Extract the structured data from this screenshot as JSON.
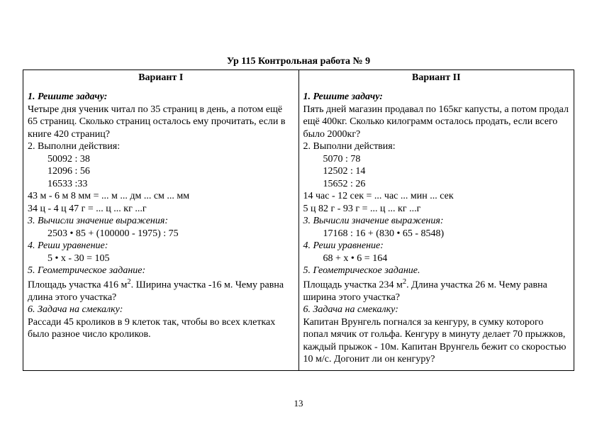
{
  "header": "Ур 115  Контрольная работа № 9",
  "page_number": "13",
  "variants": [
    {
      "title": "Вариант I",
      "t1_head": "1. Решите задачу:",
      "t1_body": "Четыре дня ученик читал по 35 страниц в день, а потом ещё 65 страниц. Сколько страниц осталось ему прочитать, если в книге 420 страниц?",
      "t2_head": "2. Выполни действия:",
      "t2_l1": "50092 : 38",
      "t2_l2": "12096 : 56",
      "t2_l3": "16533 :33",
      "t2_l4": " 43 м - 6 м 8 мм = ... м ... дм ... см ... мм",
      "t2_l5": " 34 ц - 4 ц 47 г = ... ц ... кг ...г",
      "t3_head": "3. Вычисли значение выражения:",
      "t3_l1": "2503 • 85 + (100000 - 1975) : 75",
      "t4_head": "4. Реши уравнение:",
      "t4_l1": "5 • x - 30 = 105",
      "t5_head": "5. Геометрическое задание:",
      "t5_body_pre": "Площадь участка 416 м",
      "t5_body_post": ". Ширина участка -16 м. Чему равна длина этого участка?",
      "t6_head": "6. Задача на смекалку:",
      "t6_body": "Рассади 45 кроликов в 9 клеток так, чтобы во всех клетках было разное число кроликов."
    },
    {
      "title": "Вариант II",
      "t1_head": "1. Решите задачу:",
      "t1_body": "Пять дней магазин продавал по 165кг капусты, а потом продал ещё 400кг. Сколько килограмм осталось продать, если всего было 2000кг?",
      "t2_head": "2. Выполни действия:",
      "t2_l1": "5070 : 78",
      "t2_l2": "12502 : 14",
      "t2_l3": "15652 : 26",
      "t2_l4": "14 час - 12 сек = ... час ... мин ... сек",
      "t2_l5": " 5 ц 82 г - 93 г = ... ц ... кг ...г",
      "t3_head": "3. Вычисли значение выражения:",
      "t3_l1": "17168 : 16 + (830 • 65 - 8548)",
      "t4_head": "4. Реши уравнение:",
      "t4_l1": "68 + x • 6 = 164",
      "t5_head": "5. Геометрическое задание.",
      "t5_body_pre": "Площадь участка 234 м",
      "t5_body_post": ". Длина участка 26 м. Чему равна ширина этого участка?",
      "t6_head": "6. Задача на смекалку:",
      "t6_body": "Капитан Врунгель погнался за кенгуру, в сумку которого попал мячик от гольфа. Кенгуру в минуту делает 70 прыжков, каждый прыжок - 10м. Капитан Врунгель бежит со скоростью 10 м/с. Догонит ли он кенгуру?"
    }
  ]
}
